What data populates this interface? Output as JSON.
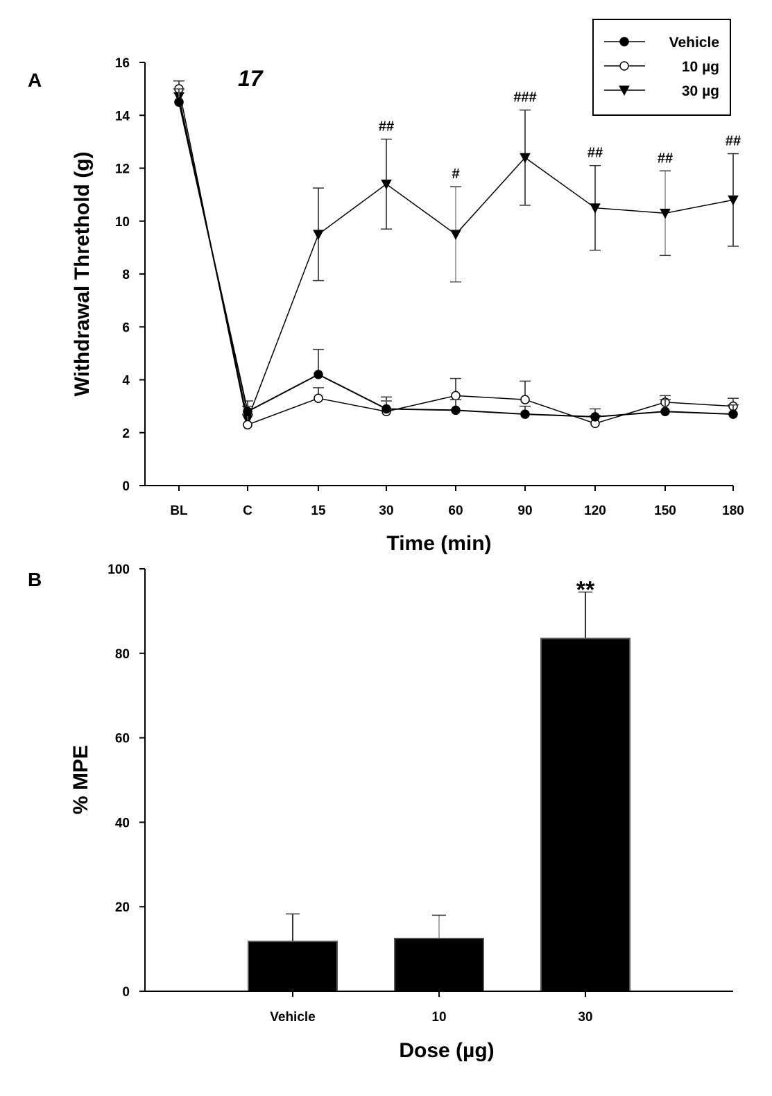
{
  "chart_data": [
    {
      "panel": "A",
      "type": "line",
      "title": "17",
      "xlabel": "Time (min)",
      "ylabel": "Withdrawal Threthold (g)",
      "categories": [
        "BL",
        "C",
        "15",
        "30",
        "60",
        "90",
        "120",
        "150",
        "180"
      ],
      "ylim": [
        0,
        16
      ],
      "yticks": [
        0,
        2,
        4,
        6,
        8,
        10,
        12,
        14,
        16
      ],
      "legend": {
        "placement": "top-right"
      },
      "series": [
        {
          "name": "Vehicle",
          "marker": "filled-circle",
          "values": [
            14.5,
            2.8,
            4.2,
            2.9,
            2.85,
            2.7,
            2.6,
            2.8,
            2.7
          ],
          "errors": [
            0.5,
            0.4,
            0.95,
            0.45,
            0.4,
            0.3,
            0.3,
            0.45,
            0.35
          ]
        },
        {
          "name": "10 µg",
          "marker": "open-circle",
          "values": [
            15.0,
            2.3,
            3.3,
            2.8,
            3.4,
            3.25,
            2.35,
            3.15,
            3.0
          ],
          "errors": [
            0.3,
            0.4,
            0.4,
            0.4,
            0.65,
            0.7,
            0.3,
            0.25,
            0.3
          ]
        },
        {
          "name": "30 µg",
          "marker": "filled-triangle-down",
          "values": [
            14.7,
            2.5,
            9.5,
            11.4,
            9.5,
            12.4,
            10.5,
            10.3,
            10.8
          ],
          "errors": [
            0.6,
            0.5,
            1.75,
            1.7,
            1.8,
            1.8,
            1.6,
            1.6,
            1.75
          ]
        }
      ],
      "annotations": [
        {
          "category": "30",
          "text": "##"
        },
        {
          "category": "60",
          "text": "#"
        },
        {
          "category": "90",
          "text": "###"
        },
        {
          "category": "120",
          "text": "##"
        },
        {
          "category": "150",
          "text": "##"
        },
        {
          "category": "180",
          "text": "##"
        }
      ]
    },
    {
      "panel": "B",
      "type": "bar",
      "xlabel": "Dose (µg)",
      "ylabel": "% MPE",
      "categories": [
        "Vehicle",
        "10",
        "30"
      ],
      "values": [
        11.8,
        12.5,
        83.5
      ],
      "errors": [
        6.5,
        5.5,
        11.0
      ],
      "ylim": [
        0,
        100
      ],
      "yticks": [
        0,
        20,
        40,
        60,
        80,
        100
      ],
      "colors": {
        "bar": "#000000"
      },
      "annotations": [
        {
          "category": "30",
          "text": "**"
        }
      ]
    }
  ]
}
